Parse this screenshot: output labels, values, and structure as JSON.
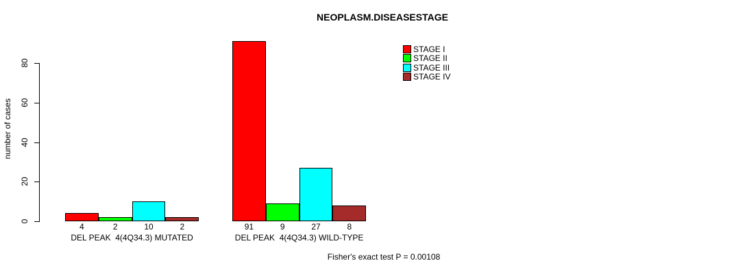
{
  "title": "NEOPLASM.DISEASESTAGE",
  "y_axis": {
    "label": "number of cases",
    "ticks": [
      0,
      20,
      40,
      60,
      80
    ]
  },
  "legend": {
    "items": [
      {
        "label": "STAGE I",
        "color": "#FF0000"
      },
      {
        "label": "STAGE II",
        "color": "#00FF00"
      },
      {
        "label": "STAGE III",
        "color": "#00FFFF"
      },
      {
        "label": "STAGE IV",
        "color": "#A52A2A"
      }
    ]
  },
  "footer": "Fisher's exact test P = 0.00108",
  "chart_data": {
    "type": "bar",
    "title": "NEOPLASM.DISEASESTAGE",
    "xlabel": "",
    "ylabel": "number of cases",
    "ylim": [
      0,
      95
    ],
    "yticks": [
      0,
      20,
      40,
      60,
      80
    ],
    "grid": false,
    "legend_position": "top-right",
    "bar_borders": "#000000",
    "categories": [
      "DEL PEAK  4(4Q34.3) MUTATED",
      "DEL PEAK  4(4Q34.3) WILD-TYPE"
    ],
    "series": [
      {
        "name": "STAGE I",
        "color": "#FF0000",
        "values": [
          4,
          91
        ]
      },
      {
        "name": "STAGE II",
        "color": "#00FF00",
        "values": [
          2,
          9
        ]
      },
      {
        "name": "STAGE III",
        "color": "#00FFFF",
        "values": [
          10,
          27
        ]
      },
      {
        "name": "STAGE IV",
        "color": "#A52A2A",
        "values": [
          2,
          8
        ]
      }
    ],
    "bar_value_labels": [
      [
        4,
        2,
        10,
        2
      ],
      [
        91,
        9,
        27,
        8
      ]
    ],
    "annotation": "Fisher's exact test P = 0.00108"
  }
}
